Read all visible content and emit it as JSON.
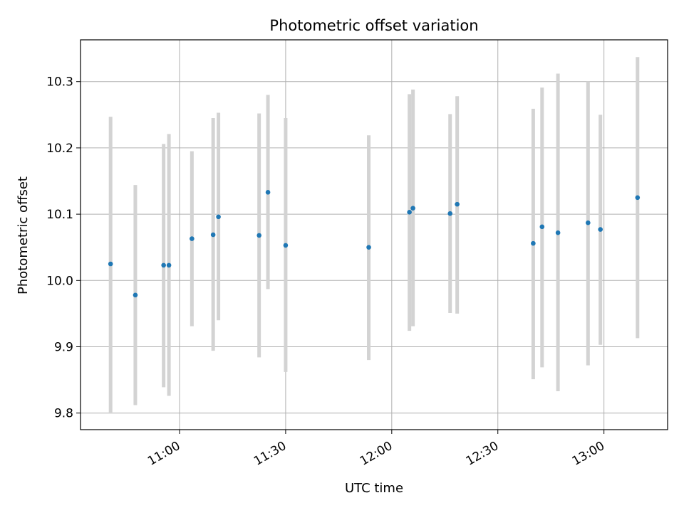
{
  "chart_data": {
    "type": "scatter",
    "title": "Photometric offset variation",
    "xlabel": "UTC time",
    "ylabel": "Photometric offset",
    "x_ticks": [
      "11:00",
      "11:30",
      "12:00",
      "12:30",
      "13:00"
    ],
    "y_ticks": [
      "9.8",
      "9.9",
      "10.0",
      "10.1",
      "10.2",
      "10.3"
    ],
    "xlim": [
      "10:32",
      "13:18"
    ],
    "ylim": [
      9.775,
      10.363
    ],
    "grid": true,
    "errorbar_color": "#d3d3d3",
    "marker_color": "#1f77b4",
    "series": [
      {
        "x": [
          "10:40:30",
          "10:47:30",
          "10:55:30",
          "10:57:00",
          "11:03:30",
          "11:09:30",
          "11:11:00",
          "11:22:30",
          "11:25:00",
          "11:30:00",
          "11:53:30",
          "12:05:00",
          "12:06:00",
          "12:16:30",
          "12:18:30",
          "12:40:00",
          "12:42:30",
          "12:47:00",
          "12:55:30",
          "12:59:00",
          "13:09:30"
        ],
        "y": [
          10.025,
          9.978,
          10.023,
          10.023,
          10.063,
          10.069,
          10.096,
          10.068,
          10.133,
          10.053,
          10.05,
          10.103,
          10.109,
          10.101,
          10.115,
          10.056,
          10.081,
          10.072,
          10.087,
          10.077,
          10.125
        ],
        "y_low": [
          9.801,
          9.812,
          9.839,
          9.826,
          9.931,
          9.894,
          9.94,
          9.884,
          9.987,
          9.862,
          9.88,
          9.924,
          9.931,
          9.951,
          9.95,
          9.851,
          9.869,
          9.833,
          9.872,
          9.903,
          9.913
        ],
        "y_high": [
          10.247,
          10.144,
          10.206,
          10.221,
          10.195,
          10.245,
          10.253,
          10.252,
          10.28,
          10.245,
          10.219,
          10.281,
          10.288,
          10.251,
          10.278,
          10.259,
          10.291,
          10.312,
          10.3,
          10.25,
          10.337
        ]
      }
    ]
  }
}
